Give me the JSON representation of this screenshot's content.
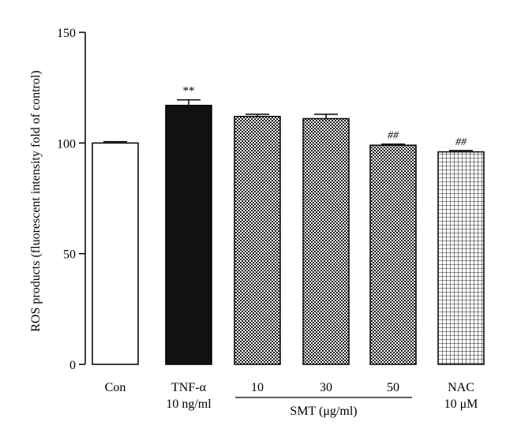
{
  "chart_data": {
    "type": "bar",
    "ylabel": "ROS products (fluorescent intensity fold of control)",
    "ylim": [
      0,
      150
    ],
    "yticks": [
      "0",
      "50",
      "100",
      "150"
    ],
    "categories": [
      {
        "line1": "Con",
        "line2": ""
      },
      {
        "line1": "TNF-α",
        "line2": "10 ng/ml"
      },
      {
        "line1": "10",
        "line2": ""
      },
      {
        "line1": "30",
        "line2": ""
      },
      {
        "line1": "50",
        "line2": ""
      },
      {
        "line1": "NAC",
        "line2": "10 μM"
      }
    ],
    "values": [
      100,
      117,
      112,
      111,
      99,
      96
    ],
    "errors": [
      0.6,
      2.5,
      1.0,
      2.0,
      0.5,
      0.6
    ],
    "fills": [
      "white",
      "black",
      "checker",
      "checker",
      "checker",
      "grid"
    ],
    "annotations": [
      "",
      "**",
      "",
      "",
      "##",
      "##"
    ],
    "group_label": "SMT (μg/ml)",
    "grid": false
  }
}
